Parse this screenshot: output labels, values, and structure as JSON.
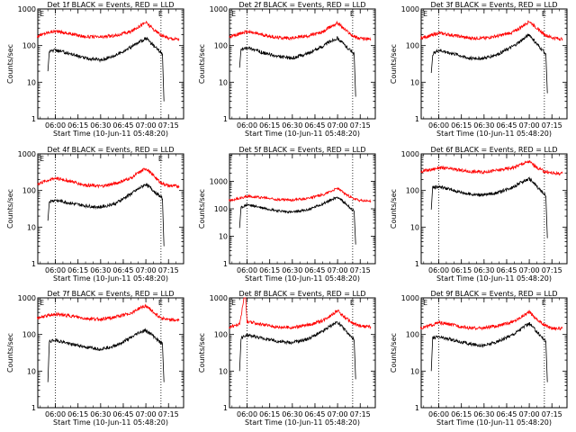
{
  "chart_data": [
    {
      "type": "line",
      "title": "Det 1f BLACK = Events, RED = LLD",
      "xlabel": "Start Time (10-Jun-11 05:48:20)",
      "ylabel": "Counts/sec",
      "x_ticks": [
        "06:00",
        "06:15",
        "06:30",
        "06:45",
        "07:00",
        "07:15"
      ],
      "y_ticks": [
        "1",
        "10",
        "100",
        "1000"
      ],
      "yscale": "log",
      "ylim": [
        1,
        1000
      ],
      "xlim": [
        "05:48:20",
        "07:25"
      ],
      "marker_labels": [
        "E",
        "E"
      ],
      "vlines": [
        "06:00",
        "07:10"
      ],
      "series": [
        {
          "color": "#ff0000",
          "x": [
            "05:48",
            "05:55",
            "06:00",
            "06:10",
            "06:20",
            "06:30",
            "06:40",
            "06:50",
            "06:55",
            "07:00",
            "07:05",
            "07:10",
            "07:15",
            "07:22"
          ],
          "y": [
            180,
            230,
            250,
            210,
            175,
            170,
            190,
            240,
            330,
            430,
            280,
            190,
            160,
            150
          ]
        },
        {
          "color": "#000000",
          "x": [
            "05:55",
            "05:56",
            "06:00",
            "06:10",
            "06:20",
            "06:30",
            "06:40",
            "06:50",
            "06:55",
            "07:00",
            "07:05",
            "07:11",
            "07:12"
          ],
          "y": [
            20,
            70,
            75,
            60,
            45,
            40,
            55,
            90,
            120,
            160,
            100,
            60,
            3
          ]
        }
      ]
    },
    {
      "type": "line",
      "title": "Det 2f BLACK = Events, RED = LLD",
      "xlabel": "Start Time (10-Jun-11 05:48:20)",
      "ylabel": "Counts/sec",
      "x_ticks": [
        "06:00",
        "06:15",
        "06:30",
        "06:45",
        "07:00",
        "07:15"
      ],
      "y_ticks": [
        "1",
        "10",
        "100",
        "1000"
      ],
      "yscale": "log",
      "ylim": [
        1,
        1000
      ],
      "xlim": [
        "05:48:20",
        "07:25"
      ],
      "marker_labels": [
        "E",
        "E"
      ],
      "vlines": [
        "06:00",
        "07:10"
      ],
      "series": [
        {
          "color": "#ff0000",
          "x": [
            "05:48",
            "05:55",
            "06:00",
            "06:10",
            "06:20",
            "06:30",
            "06:40",
            "06:50",
            "06:55",
            "07:00",
            "07:05",
            "07:10",
            "07:15",
            "07:22"
          ],
          "y": [
            170,
            210,
            240,
            200,
            165,
            160,
            185,
            230,
            320,
            420,
            270,
            185,
            155,
            150
          ]
        },
        {
          "color": "#000000",
          "x": [
            "05:55",
            "05:56",
            "06:00",
            "06:10",
            "06:20",
            "06:30",
            "06:40",
            "06:50",
            "06:55",
            "07:00",
            "07:05",
            "07:11",
            "07:12"
          ],
          "y": [
            25,
            75,
            90,
            65,
            50,
            45,
            60,
            95,
            130,
            160,
            100,
            60,
            4
          ]
        }
      ]
    },
    {
      "type": "line",
      "title": "Det 3f BLACK = Events, RED = LLD",
      "xlabel": "Start Time (10-Jun-11 05:48:20)",
      "ylabel": "Counts/sec",
      "x_ticks": [
        "06:00",
        "06:15",
        "06:30",
        "06:45",
        "07:00",
        "07:15"
      ],
      "y_ticks": [
        "1",
        "10",
        "100",
        "1000"
      ],
      "yscale": "log",
      "ylim": [
        1,
        1000
      ],
      "xlim": [
        "05:48:20",
        "07:25"
      ],
      "marker_labels": [
        "E",
        "E"
      ],
      "vlines": [
        "06:00",
        "07:10"
      ],
      "series": [
        {
          "color": "#ff0000",
          "x": [
            "05:48",
            "05:55",
            "06:00",
            "06:10",
            "06:20",
            "06:30",
            "06:40",
            "06:50",
            "06:55",
            "07:00",
            "07:05",
            "07:10",
            "07:15",
            "07:22"
          ],
          "y": [
            160,
            190,
            220,
            190,
            160,
            160,
            185,
            240,
            330,
            460,
            300,
            200,
            165,
            150
          ]
        },
        {
          "color": "#000000",
          "x": [
            "05:55",
            "05:56",
            "06:00",
            "06:10",
            "06:20",
            "06:30",
            "06:40",
            "06:50",
            "06:55",
            "07:00",
            "07:05",
            "07:11",
            "07:12"
          ],
          "y": [
            18,
            60,
            75,
            60,
            45,
            45,
            60,
            100,
            140,
            200,
            110,
            60,
            5
          ]
        }
      ]
    },
    {
      "type": "line",
      "title": "Det 4f BLACK = Events, RED = LLD",
      "xlabel": "Start Time (10-Jun-11 05:48:20)",
      "ylabel": "Counts/sec",
      "x_ticks": [
        "06:00",
        "06:15",
        "06:30",
        "06:45",
        "07:00",
        "07:15"
      ],
      "y_ticks": [
        "1",
        "10",
        "100",
        "1000"
      ],
      "yscale": "log",
      "ylim": [
        1,
        1000
      ],
      "xlim": [
        "05:48:20",
        "07:25"
      ],
      "marker_labels": [
        "E",
        "E"
      ],
      "vlines": [
        "06:00",
        "07:10"
      ],
      "series": [
        {
          "color": "#ff0000",
          "x": [
            "05:48",
            "05:55",
            "06:00",
            "06:10",
            "06:20",
            "06:30",
            "06:40",
            "06:50",
            "06:55",
            "07:00",
            "07:05",
            "07:10",
            "07:15",
            "07:22"
          ],
          "y": [
            150,
            190,
            220,
            180,
            140,
            130,
            155,
            220,
            300,
            400,
            260,
            160,
            135,
            130
          ]
        },
        {
          "color": "#000000",
          "x": [
            "05:55",
            "05:56",
            "06:00",
            "06:10",
            "06:20",
            "06:30",
            "06:40",
            "06:50",
            "06:55",
            "07:00",
            "07:05",
            "07:11",
            "07:12"
          ],
          "y": [
            15,
            50,
            55,
            45,
            38,
            35,
            45,
            80,
            110,
            150,
            100,
            60,
            3
          ]
        }
      ]
    },
    {
      "type": "line",
      "title": "Det 5f BLACK = Events, RED = LLD",
      "xlabel": "Start Time (10-Jun-11 05:48:20)",
      "ylabel": "Counts/sec",
      "x_ticks": [
        "06:00",
        "06:15",
        "06:30",
        "06:45",
        "07:00",
        "07:15"
      ],
      "y_ticks": [
        "1",
        "10",
        "100",
        "1000"
      ],
      "yscale": "log",
      "ylim": [
        1,
        10000
      ],
      "xlim": [
        "05:48:20",
        "07:25"
      ],
      "marker_labels": [],
      "vlines": [
        "06:00",
        "07:10"
      ],
      "series": [
        {
          "color": "#ff0000",
          "x": [
            "05:48",
            "05:55",
            "06:00",
            "06:10",
            "06:20",
            "06:30",
            "06:40",
            "06:50",
            "06:55",
            "07:00",
            "07:05",
            "07:10",
            "07:15",
            "07:22"
          ],
          "y": [
            200,
            240,
            290,
            260,
            220,
            210,
            240,
            320,
            430,
            560,
            350,
            240,
            200,
            190
          ]
        },
        {
          "color": "#000000",
          "x": [
            "05:55",
            "05:56",
            "06:00",
            "06:10",
            "06:20",
            "06:30",
            "06:40",
            "06:50",
            "06:55",
            "07:00",
            "07:05",
            "07:11",
            "07:12"
          ],
          "y": [
            20,
            110,
            140,
            110,
            85,
            75,
            90,
            150,
            200,
            270,
            160,
            80,
            5
          ]
        }
      ]
    },
    {
      "type": "line",
      "title": "Det 6f BLACK = Events, RED = LLD",
      "xlabel": "Start Time (10-Jun-11 05:48:20)",
      "ylabel": "Counts/sec",
      "x_ticks": [
        "06:00",
        "06:15",
        "06:30",
        "06:45",
        "07:00",
        "07:15"
      ],
      "y_ticks": [
        "1",
        "10",
        "100",
        "1000"
      ],
      "yscale": "log",
      "ylim": [
        1,
        1000
      ],
      "xlim": [
        "05:48:20",
        "07:25"
      ],
      "marker_labels": [],
      "vlines": [
        "06:00",
        "07:10"
      ],
      "series": [
        {
          "color": "#ff0000",
          "x": [
            "05:48",
            "05:55",
            "06:00",
            "06:10",
            "06:20",
            "06:30",
            "06:40",
            "06:50",
            "06:55",
            "07:00",
            "07:05",
            "07:10",
            "07:15",
            "07:22"
          ],
          "y": [
            330,
            370,
            420,
            380,
            330,
            320,
            360,
            430,
            530,
            620,
            420,
            330,
            300,
            290
          ]
        },
        {
          "color": "#000000",
          "x": [
            "05:55",
            "05:56",
            "06:00",
            "06:10",
            "06:20",
            "06:30",
            "06:40",
            "06:50",
            "06:55",
            "07:00",
            "07:05",
            "07:11",
            "07:12"
          ],
          "y": [
            30,
            120,
            130,
            100,
            80,
            75,
            90,
            130,
            170,
            210,
            130,
            70,
            5
          ]
        }
      ]
    },
    {
      "type": "line",
      "title": "Det 7f BLACK = Events, RED = LLD",
      "xlabel": "Start Time (10-Jun-11 05:48:20)",
      "ylabel": "Counts/sec",
      "x_ticks": [
        "06:00",
        "06:15",
        "06:30",
        "06:45",
        "07:00",
        "07:15"
      ],
      "y_ticks": [
        "1",
        "10",
        "100",
        "1000"
      ],
      "yscale": "log",
      "ylim": [
        1,
        1000
      ],
      "xlim": [
        "05:48:20",
        "07:25"
      ],
      "marker_labels": [
        "E",
        "E"
      ],
      "vlines": [
        "06:00",
        "07:10"
      ],
      "series": [
        {
          "color": "#ff0000",
          "x": [
            "05:48",
            "05:55",
            "06:00",
            "06:10",
            "06:20",
            "06:30",
            "06:40",
            "06:50",
            "06:55",
            "07:00",
            "07:05",
            "07:10",
            "07:15",
            "07:22"
          ],
          "y": [
            280,
            330,
            360,
            320,
            270,
            260,
            300,
            380,
            500,
            620,
            400,
            290,
            250,
            240
          ]
        },
        {
          "color": "#000000",
          "x": [
            "05:55",
            "05:56",
            "06:00",
            "06:10",
            "06:20",
            "06:30",
            "06:40",
            "06:50",
            "06:55",
            "07:00",
            "07:05",
            "07:11",
            "07:12"
          ],
          "y": [
            5,
            65,
            70,
            55,
            45,
            40,
            50,
            80,
            110,
            130,
            90,
            55,
            5
          ]
        }
      ]
    },
    {
      "type": "line",
      "title": "Det 8f BLACK = Events, RED = LLD",
      "xlabel": "Start Time (10-Jun-11 05:48:20)",
      "ylabel": "Counts/sec",
      "x_ticks": [
        "06:00",
        "06:15",
        "06:30",
        "06:45",
        "07:00",
        "07:15"
      ],
      "y_ticks": [
        "1",
        "10",
        "100",
        "1000"
      ],
      "yscale": "log",
      "ylim": [
        1,
        1000
      ],
      "xlim": [
        "05:48:20",
        "07:25"
      ],
      "marker_labels": [
        "E",
        "E"
      ],
      "vlines": [
        "06:00",
        "07:10"
      ],
      "series": [
        {
          "color": "#ff0000",
          "x": [
            "05:48",
            "05:55",
            "05:58",
            "05:59",
            "06:00",
            "06:10",
            "06:20",
            "06:30",
            "06:40",
            "06:50",
            "06:55",
            "07:00",
            "07:05",
            "07:10",
            "07:15",
            "07:22"
          ],
          "y": [
            160,
            190,
            1000,
            1000,
            220,
            190,
            160,
            155,
            180,
            240,
            330,
            450,
            290,
            200,
            170,
            160
          ]
        },
        {
          "color": "#000000",
          "x": [
            "05:55",
            "05:56",
            "06:00",
            "06:10",
            "06:20",
            "06:30",
            "06:40",
            "06:50",
            "06:55",
            "07:00",
            "07:05",
            "07:11",
            "07:12"
          ],
          "y": [
            10,
            80,
            95,
            80,
            65,
            60,
            75,
            120,
            170,
            220,
            130,
            70,
            6
          ]
        }
      ]
    },
    {
      "type": "line",
      "title": "Det 9f BLACK = Events, RED = LLD",
      "xlabel": "Start Time (10-Jun-11 05:48:20)",
      "ylabel": "Counts/sec",
      "x_ticks": [
        "06:00",
        "06:15",
        "06:30",
        "06:45",
        "07:00",
        "07:15"
      ],
      "y_ticks": [
        "1",
        "10",
        "100",
        "1000"
      ],
      "yscale": "log",
      "ylim": [
        1,
        1000
      ],
      "xlim": [
        "05:48:20",
        "07:25"
      ],
      "marker_labels": [
        "E",
        "E"
      ],
      "vlines": [
        "06:00",
        "07:10"
      ],
      "series": [
        {
          "color": "#ff0000",
          "x": [
            "05:48",
            "05:55",
            "06:00",
            "06:10",
            "06:20",
            "06:30",
            "06:40",
            "06:50",
            "06:55",
            "07:00",
            "07:05",
            "07:10",
            "07:15",
            "07:22"
          ],
          "y": [
            150,
            180,
            210,
            180,
            150,
            150,
            175,
            230,
            310,
            420,
            260,
            180,
            150,
            145
          ]
        },
        {
          "color": "#000000",
          "x": [
            "05:55",
            "05:56",
            "06:00",
            "06:10",
            "06:20",
            "06:30",
            "06:40",
            "06:50",
            "06:55",
            "07:00",
            "07:05",
            "07:11",
            "07:12"
          ],
          "y": [
            10,
            80,
            85,
            70,
            55,
            50,
            65,
            105,
            150,
            200,
            120,
            65,
            5
          ]
        }
      ]
    }
  ]
}
